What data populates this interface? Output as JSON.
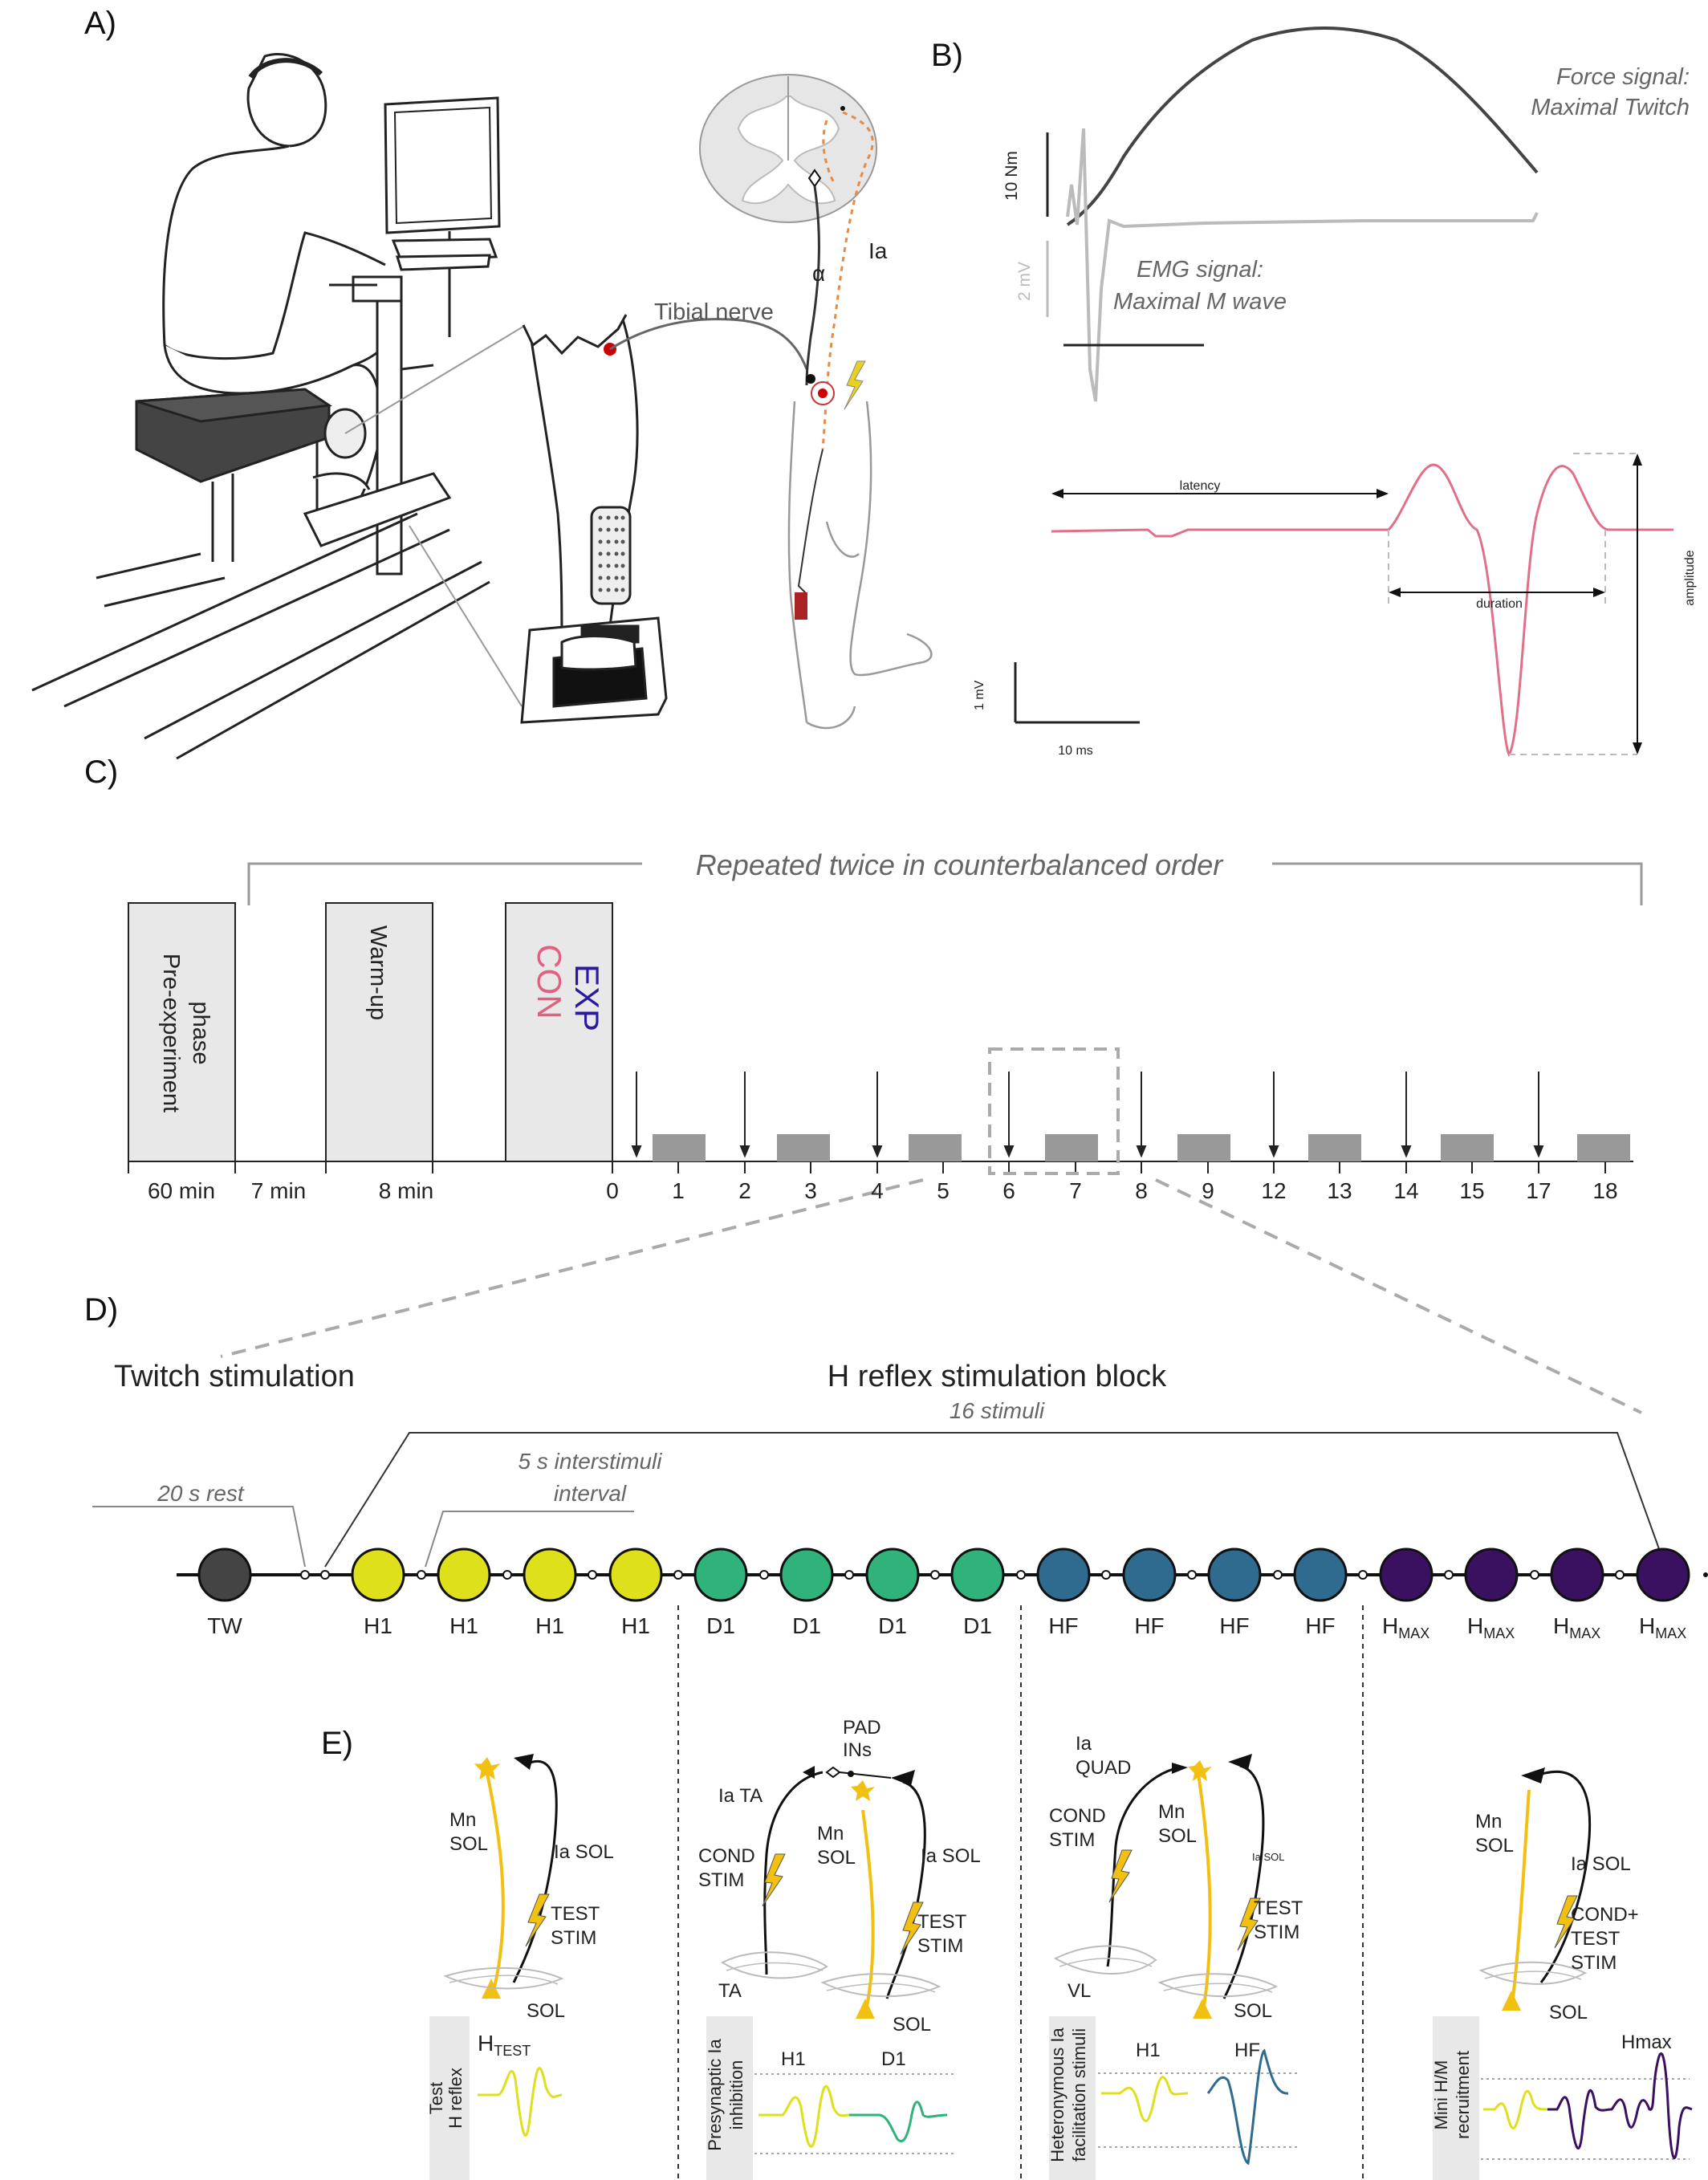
{
  "panels": {
    "a": "A)",
    "b": "B)",
    "c": "C)",
    "d": "D)",
    "e": "E)"
  },
  "panel_a": {
    "tibial_nerve": "Tibial nerve",
    "alpha": "α",
    "ia": "Ia"
  },
  "panel_b": {
    "force_signal_line1": "Force signal:",
    "force_signal_line2": "Maximal Twitch",
    "emg_signal_line1": "EMG signal:",
    "emg_signal_line2": "Maximal M wave",
    "scale_force": "10 Nm",
    "scale_emg": "2 mV",
    "latency": "latency",
    "duration": "duration",
    "amplitude": "amplitude",
    "scale_mv": "1 mV",
    "scale_ms": "10 ms",
    "colors": {
      "force": "#444444",
      "emg": "#bbbbbb",
      "mwave": "#e07088"
    }
  },
  "panel_c": {
    "repeated": "Repeated twice in counterbalanced order",
    "box_pre_line1": "Pre-experiment",
    "box_pre_line2": "phase",
    "box_warmup": "Warm-up",
    "box_exp": "EXP",
    "box_con": "CON",
    "labels": [
      "60 min",
      "7 min",
      "8 min",
      "0",
      "1",
      "2",
      "3",
      "4",
      "5",
      "6",
      "7",
      "8",
      "9",
      "12",
      "13",
      "14",
      "15",
      "17",
      "18"
    ],
    "colors": {
      "exp": "#2a1aa0",
      "con": "#e06080",
      "box": "#e8e8e8",
      "block": "#999999"
    }
  },
  "panel_d": {
    "twitch": "Twitch stimulation",
    "hblock": "H reflex stimulation block",
    "stimuli": "16 stimuli",
    "rest": "20 s rest",
    "interval_line1": "5 s interstimuli",
    "interval_line2": "interval",
    "tw": "TW",
    "h1": "H1",
    "d1": "D1",
    "hf": "HF",
    "hmax_main": "H",
    "hmax_sub": "MAX",
    "colors": {
      "tw": "#444444",
      "h1": "#dde01a",
      "d1": "#2fb37a",
      "hf": "#2f6a8f",
      "hmax": "#3a1060"
    }
  },
  "panel_e": {
    "mn_sol": [
      "Mn",
      "SOL"
    ],
    "ia_sol": "Ia SOL",
    "test_stim": [
      "TEST",
      "STIM"
    ],
    "sol": "SOL",
    "h_test_main": "H",
    "h_test_sub": "TEST",
    "test_h_reflex": [
      "Test",
      "H reflex"
    ],
    "pad_ins": [
      "PAD",
      "INs"
    ],
    "ia_ta": "Ia TA",
    "cond_stim": [
      "COND",
      "STIM"
    ],
    "ta": "TA",
    "h1": "H1",
    "d1": "D1",
    "presynaptic": [
      "Presynaptic Ia",
      "inhibition"
    ],
    "ia_quad": [
      "Ia",
      "QUAD"
    ],
    "vl": "VL",
    "hf": "HF",
    "heteronymous": [
      "Heteronymous Ia",
      "facilitation stimuli"
    ],
    "cond_test_stim": [
      "COND+",
      "TEST",
      "STIM"
    ],
    "hmax": "Hmax",
    "mini_hm": [
      "Mini H/M",
      "recruitment"
    ]
  }
}
